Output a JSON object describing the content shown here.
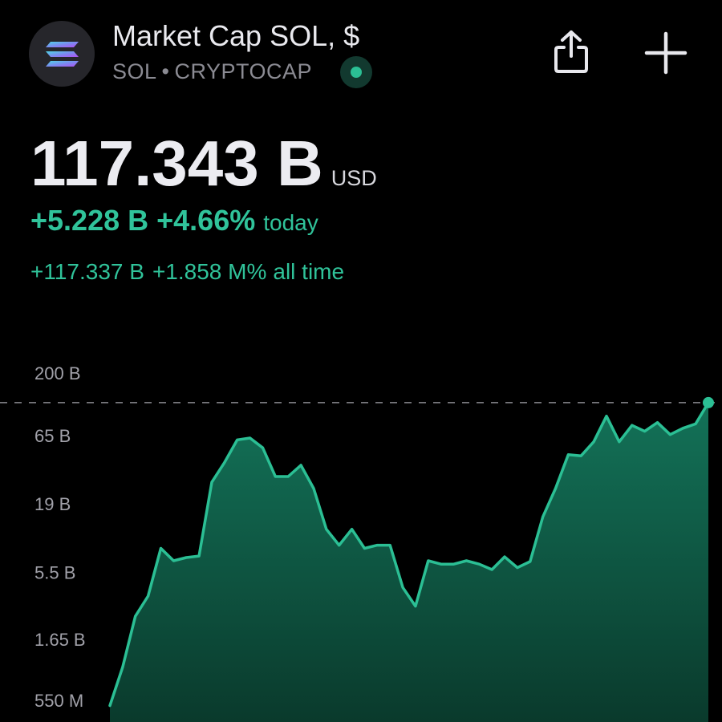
{
  "header": {
    "title": "Market Cap SOL, $",
    "symbol": "SOL",
    "separator": "•",
    "exchange": "CRYPTOCAP",
    "logo_icon": "solana-logo-icon",
    "live_icon": "live-status-dot-icon",
    "share_icon": "share-icon",
    "add_icon": "plus-icon"
  },
  "price": {
    "value": "117.343 B",
    "currency": "USD"
  },
  "change_today": {
    "abs": "+5.228 B",
    "pct": "+4.66%",
    "label": "today"
  },
  "change_all_time": {
    "abs": "+117.337 B",
    "pct": "+1.858 M%",
    "label": "all time"
  },
  "colors": {
    "background": "#000000",
    "positive": "#30c39a",
    "line": "#2bbf94",
    "area_top": "#137258",
    "area_bottom": "#0a3a2c",
    "text_primary": "#ececf1",
    "text_secondary": "#8b8b93"
  },
  "chart_data": {
    "type": "area",
    "scale": "log",
    "y_tick_labels": [
      "200 B",
      "65 B",
      "19 B",
      "5.5 B",
      "1.65 B",
      "550 M"
    ],
    "y_tick_values": [
      200,
      65,
      19,
      5.5,
      1.65,
      0.55
    ],
    "y_unit": "B",
    "reference_line": {
      "value": 117.343,
      "style": "dashed"
    },
    "last_point_marker": true,
    "values": [
      0.5,
      1.0,
      2.5,
      3.6,
      8.5,
      6.8,
      7.2,
      7.4,
      28,
      40,
      60,
      62,
      52,
      31,
      31,
      38,
      25,
      12,
      9,
      12,
      8.5,
      9,
      9,
      4.2,
      3.0,
      6.8,
      6.4,
      6.4,
      6.8,
      6.4,
      5.8,
      7.3,
      6.0,
      6.7,
      15,
      25,
      46,
      45,
      58,
      92,
      58,
      78,
      70,
      82,
      66,
      74,
      80,
      117.343
    ]
  }
}
